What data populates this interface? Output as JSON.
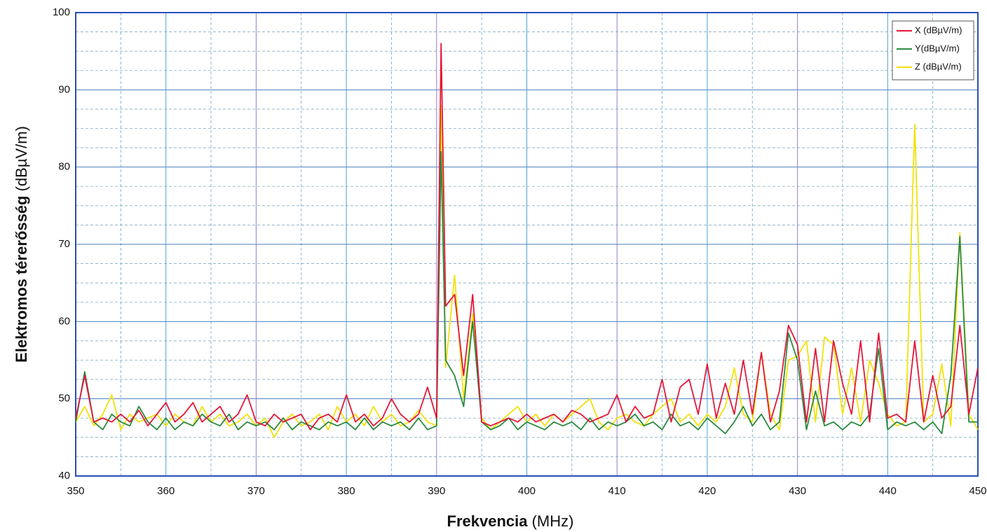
{
  "chart_data": {
    "type": "line",
    "x_title": "Frekvencia",
    "x_unit": "(MHz)",
    "y_title": "Elektromos térerősség",
    "y_unit": "(dBµV/m)",
    "x": [
      350,
      351,
      352,
      353,
      354,
      355,
      356,
      357,
      358,
      359,
      360,
      361,
      362,
      363,
      364,
      365,
      366,
      367,
      368,
      369,
      370,
      371,
      372,
      373,
      374,
      375,
      376,
      377,
      378,
      379,
      380,
      381,
      382,
      383,
      384,
      385,
      386,
      387,
      388,
      389,
      390,
      390.5,
      391,
      392,
      393,
      394,
      395,
      396,
      397,
      398,
      399,
      400,
      401,
      402,
      403,
      404,
      405,
      406,
      407,
      408,
      409,
      410,
      411,
      412,
      413,
      414,
      415,
      416,
      417,
      418,
      419,
      420,
      421,
      422,
      423,
      424,
      425,
      426,
      427,
      428,
      429,
      430,
      431,
      432,
      433,
      434,
      435,
      436,
      437,
      438,
      439,
      440,
      441,
      442,
      443,
      444,
      445,
      446,
      447,
      448,
      449,
      450
    ],
    "series": [
      {
        "name": "X (dBµV/m)",
        "color": "#e3173a",
        "values": [
          47.5,
          53,
          47,
          47.5,
          47,
          48,
          47,
          48.5,
          46.5,
          48,
          49.5,
          47,
          48,
          49.5,
          47,
          48,
          49,
          47,
          48,
          50.5,
          47,
          46.5,
          48,
          47,
          47.5,
          48,
          46,
          47.5,
          48,
          47,
          50.5,
          47,
          48,
          46.5,
          47.5,
          50,
          48,
          47,
          48,
          51.5,
          47.5,
          96,
          62,
          63.5,
          53,
          63.5,
          47,
          46.5,
          47,
          47.5,
          47,
          48,
          47,
          47.5,
          48,
          47,
          48.5,
          48,
          47,
          47.5,
          48,
          50.5,
          47,
          49,
          47.5,
          48,
          52.5,
          47,
          51.5,
          52.5,
          48,
          54.5,
          47.5,
          52,
          48,
          55,
          48,
          56,
          47,
          51,
          59.5,
          57,
          47,
          56.5,
          47,
          57.5,
          52,
          48,
          57.5,
          47,
          58.5,
          47.5,
          48,
          47,
          57.5,
          47,
          53,
          47.5,
          49,
          59.5,
          48,
          54
        ]
      },
      {
        "name": "Y(dBµV/m)",
        "color": "#2a8a3e",
        "values": [
          47,
          53.5,
          47,
          46,
          48,
          47,
          46.5,
          49,
          47,
          46,
          47.5,
          46,
          47,
          46.5,
          48,
          47,
          46.5,
          48,
          46,
          47,
          46.5,
          47,
          46,
          47.5,
          46,
          47,
          46.5,
          46,
          47,
          46.5,
          47,
          46,
          47.5,
          46,
          47,
          46.5,
          47,
          46,
          47.5,
          46,
          46.5,
          82,
          55,
          53,
          49,
          60,
          47,
          46,
          46.5,
          47.5,
          46,
          47,
          46.5,
          46,
          47,
          46.5,
          47,
          46,
          47.5,
          46,
          47,
          46.5,
          47,
          48,
          46.5,
          47,
          46,
          48,
          46.5,
          47,
          46,
          47.5,
          46.5,
          45.5,
          47,
          49,
          46.5,
          48,
          46,
          47,
          58.5,
          55,
          46,
          51,
          46.5,
          47,
          46,
          47,
          46.5,
          48,
          56.5,
          46,
          47,
          46.5,
          47,
          46,
          47,
          45.5,
          53,
          71,
          47,
          47
        ]
      },
      {
        "name": "Z (dBµV/m)",
        "color": "#f2e20a",
        "values": [
          47,
          49,
          46.5,
          48,
          50.5,
          46,
          48,
          47,
          47.5,
          48,
          46.5,
          48,
          47,
          46.5,
          49,
          47,
          48,
          46.5,
          47,
          48,
          46.5,
          47.5,
          45,
          47,
          48,
          46.5,
          47,
          48,
          46,
          49,
          47,
          48,
          46.5,
          49,
          47,
          48,
          46.5,
          47,
          48.5,
          47,
          46.5,
          88,
          54,
          66,
          50,
          61,
          47.5,
          46,
          47,
          48,
          49,
          47,
          48,
          46.5,
          48,
          47,
          48,
          49,
          50,
          47,
          46,
          47.5,
          48,
          47,
          46.5,
          48,
          49,
          50,
          47,
          48,
          46.5,
          48,
          47,
          49,
          54,
          48,
          47,
          56,
          48,
          46,
          55,
          55.5,
          57.5,
          47,
          58,
          57,
          48,
          54,
          47,
          55,
          52,
          48,
          46.5,
          47,
          85.5,
          47,
          48,
          54.5,
          46.5,
          71.5,
          48,
          46
        ]
      }
    ],
    "xlim": [
      350,
      450
    ],
    "xticks": [
      350,
      360,
      370,
      380,
      390,
      400,
      410,
      420,
      430,
      440,
      450
    ],
    "ylim": [
      40,
      100
    ],
    "yticks": [
      40,
      50,
      60,
      70,
      80,
      90,
      100
    ],
    "x_minor_grid": [
      355,
      365,
      375,
      385,
      395,
      405,
      415,
      425,
      435,
      445
    ],
    "y_minor_grid": [
      42.5,
      45,
      47.5,
      52.5,
      55,
      57.5,
      62.5,
      65,
      67.5,
      72.5,
      75,
      77.5,
      82.5,
      85,
      87.5,
      92.5,
      95,
      97.5
    ],
    "grid": true,
    "legend": "top-right"
  }
}
